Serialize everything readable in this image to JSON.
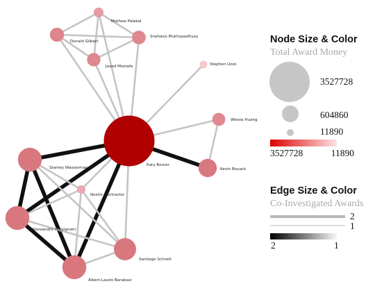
{
  "network": {
    "nodes": [
      {
        "id": "mathew",
        "label": "Mathew Palakal",
        "award_money": 40000
      },
      {
        "id": "snehasis",
        "label": "Snehasis Mukhopadhyay",
        "award_money": 130000
      },
      {
        "id": "donald",
        "label": "Donald Gilbert",
        "award_money": 140000
      },
      {
        "id": "javed",
        "label": "Javed Mostafa",
        "award_money": 120000
      },
      {
        "id": "stephen",
        "label": "Stephen Uzzo",
        "award_money": 11890
      },
      {
        "id": "weixia",
        "label": "Weixia Huang",
        "award_money": 110000
      },
      {
        "id": "katy",
        "label": "Katy Borner",
        "award_money": 3527728
      },
      {
        "id": "kevin",
        "label": "Kevin Boyack",
        "award_money": 300000
      },
      {
        "id": "stanley",
        "label": "Stanley Wasserman",
        "award_money": 604860
      },
      {
        "id": "noshir",
        "label": "Noshir Contractor",
        "award_money": 20000
      },
      {
        "id": "alessandro",
        "label": "Alessandro Vespignani",
        "award_money": 604860
      },
      {
        "id": "santiago",
        "label": "Santiago Schnell",
        "award_money": 500000
      },
      {
        "id": "albert",
        "label": "Albert-Laszlo Barabasi",
        "award_money": 604860
      }
    ],
    "edges": [
      {
        "source": "mathew",
        "target": "donald",
        "awards": 1
      },
      {
        "source": "mathew",
        "target": "snehasis",
        "awards": 1
      },
      {
        "source": "mathew",
        "target": "javed",
        "awards": 1
      },
      {
        "source": "mathew",
        "target": "katy",
        "awards": 1
      },
      {
        "source": "donald",
        "target": "snehasis",
        "awards": 1
      },
      {
        "source": "donald",
        "target": "javed",
        "awards": 1
      },
      {
        "source": "donald",
        "target": "katy",
        "awards": 1
      },
      {
        "source": "snehasis",
        "target": "javed",
        "awards": 1
      },
      {
        "source": "snehasis",
        "target": "katy",
        "awards": 1
      },
      {
        "source": "javed",
        "target": "katy",
        "awards": 1
      },
      {
        "source": "stephen",
        "target": "katy",
        "awards": 1
      },
      {
        "source": "weixia",
        "target": "katy",
        "awards": 1
      },
      {
        "source": "weixia",
        "target": "kevin",
        "awards": 1
      },
      {
        "source": "katy",
        "target": "kevin",
        "awards": 2
      },
      {
        "source": "katy",
        "target": "stanley",
        "awards": 2
      },
      {
        "source": "katy",
        "target": "alessandro",
        "awards": 2
      },
      {
        "source": "katy",
        "target": "albert",
        "awards": 2
      },
      {
        "source": "katy",
        "target": "noshir",
        "awards": 1
      },
      {
        "source": "katy",
        "target": "santiago",
        "awards": 1
      },
      {
        "source": "stanley",
        "target": "alessandro",
        "awards": 2
      },
      {
        "source": "stanley",
        "target": "albert",
        "awards": 2
      },
      {
        "source": "stanley",
        "target": "noshir",
        "awards": 1
      },
      {
        "source": "stanley",
        "target": "santiago",
        "awards": 1
      },
      {
        "source": "alessandro",
        "target": "albert",
        "awards": 2
      },
      {
        "source": "alessandro",
        "target": "santiago",
        "awards": 1
      },
      {
        "source": "alessandro",
        "target": "noshir",
        "awards": 1
      },
      {
        "source": "albert",
        "target": "santiago",
        "awards": 1
      },
      {
        "source": "albert",
        "target": "noshir",
        "awards": 1
      },
      {
        "source": "noshir",
        "target": "santiago",
        "awards": 1
      }
    ]
  },
  "legend": {
    "node_title": "Node Size & Color",
    "node_subtitle": "Total Award Money",
    "size_values": [
      "3527728",
      "604860",
      "11890"
    ],
    "color_min_label": "3527728",
    "color_max_label": "11890",
    "edge_title": "Edge Size & Color",
    "edge_subtitle": "Co-Investigated Awards",
    "edge_width_values": [
      "2",
      "1"
    ],
    "edge_color_left_label": "2",
    "edge_color_right_label": "1"
  },
  "colors": {
    "node_high": "#b00000",
    "node_low": "#f7c9cc",
    "edge_high": "#111111",
    "edge_low": "#c4c4c4",
    "legend_circle": "#c6c6c6"
  }
}
